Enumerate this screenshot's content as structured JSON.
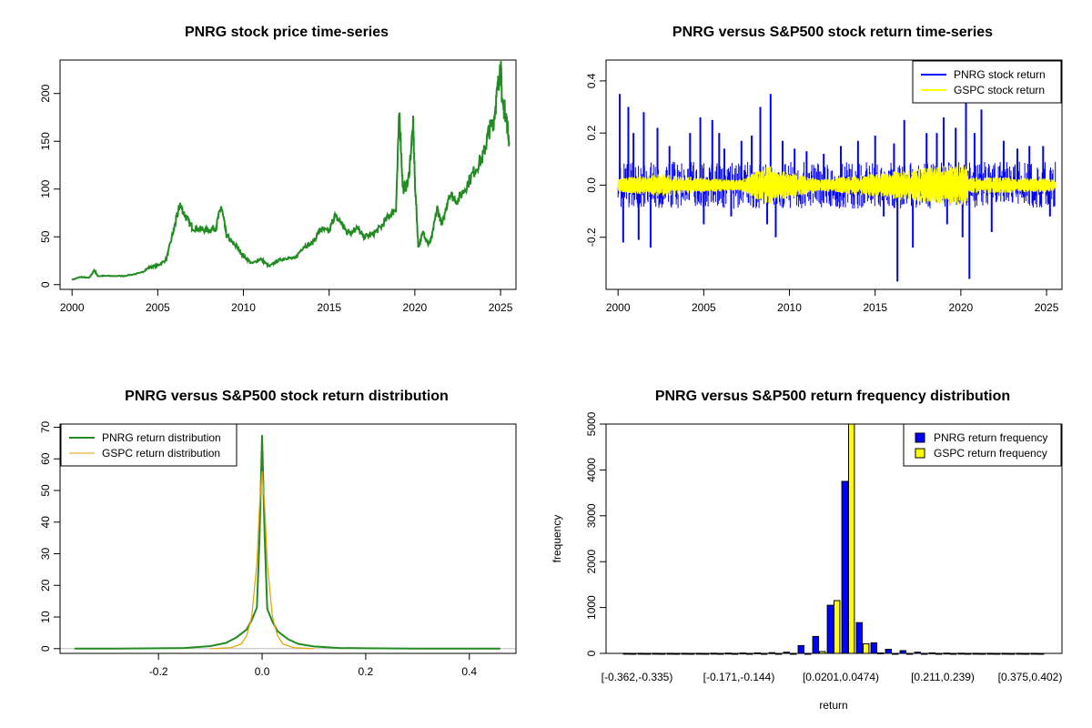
{
  "colors": {
    "price": "#228b22",
    "pnrg_return": "#0000ff",
    "gspc_return": "#ffff00",
    "pnrg_density": "#228b22",
    "gspc_density": "#e69f00",
    "axis": "#000000",
    "zero_line": "#bebebe"
  },
  "chart_data": [
    {
      "id": "price",
      "type": "line",
      "title": "PNRG stock price time-series",
      "xlabel": "",
      "ylabel": "",
      "xlim": [
        1999.3,
        2025.9
      ],
      "ylim": [
        -5,
        235
      ],
      "x_ticks": [
        2000,
        2005,
        2010,
        2015,
        2020,
        2025
      ],
      "y_ticks": [
        0,
        50,
        100,
        150,
        200
      ],
      "series": [
        {
          "color_key": "price",
          "x": [
            2000.0,
            2000.5,
            2001.0,
            2001.3,
            2001.5,
            2002.0,
            2003.0,
            2004.0,
            2004.5,
            2005.0,
            2005.5,
            2005.9,
            2006.1,
            2006.3,
            2006.6,
            2007.0,
            2007.5,
            2008.0,
            2008.4,
            2008.7,
            2009.0,
            2009.3,
            2009.6,
            2010.0,
            2010.5,
            2011.0,
            2011.5,
            2012.0,
            2012.5,
            2013.0,
            2013.5,
            2014.0,
            2014.5,
            2015.0,
            2015.3,
            2015.7,
            2016.0,
            2016.3,
            2016.6,
            2017.0,
            2017.5,
            2018.0,
            2018.5,
            2018.9,
            2019.1,
            2019.3,
            2019.6,
            2019.9,
            2020.0,
            2020.2,
            2020.5,
            2020.8,
            2021.0,
            2021.3,
            2021.6,
            2022.0,
            2022.5,
            2023.0,
            2023.5,
            2024.0,
            2024.3,
            2024.6,
            2024.8,
            2025.0,
            2025.1,
            2025.3,
            2025.5
          ],
          "y": [
            5,
            8,
            7,
            15,
            9,
            9,
            9,
            12,
            18,
            20,
            26,
            55,
            70,
            84,
            72,
            60,
            58,
            57,
            60,
            82,
            52,
            45,
            40,
            30,
            22,
            27,
            19,
            25,
            28,
            27,
            40,
            43,
            58,
            55,
            72,
            65,
            56,
            55,
            60,
            50,
            52,
            60,
            72,
            80,
            182,
            100,
            105,
            168,
            110,
            40,
            55,
            42,
            50,
            80,
            62,
            95,
            88,
            103,
            120,
            135,
            160,
            172,
            200,
            230,
            190,
            180,
            150
          ]
        }
      ]
    },
    {
      "id": "returns",
      "type": "line",
      "title": "PNRG versus S&P500 stock return time-series",
      "xlabel": "",
      "ylabel": "",
      "xlim": [
        1999.3,
        2025.9
      ],
      "ylim": [
        -0.4,
        0.48
      ],
      "x_ticks": [
        2000,
        2005,
        2010,
        2015,
        2020,
        2025
      ],
      "y_ticks": [
        -0.2,
        0.0,
        0.2,
        0.4
      ],
      "y_tick_labels": [
        "-0.2",
        "0.0",
        "0.2",
        "0.4"
      ],
      "legend": {
        "position": "top-right",
        "entries": [
          "PNRG stock return",
          "GSPC stock return"
        ]
      },
      "series": [
        {
          "name": "PNRG stock return",
          "color_key": "pnrg_return",
          "x": [
            2000.1,
            2000.3,
            2000.6,
            2000.9,
            2001.2,
            2001.5,
            2001.9,
            2002.3,
            2003.0,
            2004.2,
            2004.8,
            2005.0,
            2005.5,
            2005.9,
            2006.2,
            2006.6,
            2007.2,
            2007.8,
            2008.3,
            2008.7,
            2008.9,
            2009.2,
            2009.6,
            2010.3,
            2011.0,
            2012.0,
            2013.0,
            2014.0,
            2015.0,
            2015.5,
            2016.1,
            2016.3,
            2016.7,
            2017.2,
            2018.0,
            2018.6,
            2019.0,
            2019.2,
            2019.7,
            2020.1,
            2020.3,
            2020.5,
            2020.8,
            2021.2,
            2021.8,
            2022.5,
            2023.3,
            2024.0,
            2024.8,
            2025.2
          ],
          "y": [
            0.35,
            -0.22,
            0.3,
            0.2,
            -0.21,
            0.28,
            -0.24,
            0.22,
            0.15,
            0.2,
            0.26,
            -0.15,
            0.25,
            0.2,
            0.14,
            -0.12,
            0.17,
            0.19,
            0.3,
            -0.15,
            0.35,
            -0.2,
            0.17,
            0.14,
            0.13,
            0.12,
            0.15,
            0.17,
            0.19,
            -0.12,
            0.16,
            -0.37,
            0.25,
            -0.24,
            0.2,
            0.2,
            0.26,
            -0.15,
            0.22,
            -0.2,
            0.32,
            -0.36,
            0.2,
            0.29,
            -0.18,
            0.17,
            0.14,
            0.15,
            0.15,
            -0.12
          ],
          "band": 0.06
        },
        {
          "name": "GSPC stock return",
          "color_key": "gspc_return",
          "x": [
            2000.0,
            2002.5,
            2003.0,
            2007.0,
            2008.8,
            2009.3,
            2012.0,
            2020.2,
            2020.5,
            2025.5
          ],
          "y_abs": [
            0.02,
            0.035,
            0.03,
            0.015,
            0.06,
            0.045,
            0.018,
            0.065,
            0.025,
            0.02
          ]
        }
      ]
    },
    {
      "id": "density",
      "type": "line",
      "title": "PNRG versus S&P500 stock return distribution",
      "xlabel": "",
      "ylabel": "",
      "xlim": [
        -0.39,
        0.49
      ],
      "ylim": [
        -1.5,
        71
      ],
      "x_ticks": [
        -0.2,
        0.0,
        0.2,
        0.4
      ],
      "x_tick_labels": [
        "-0.2",
        "0.0",
        "0.2",
        "0.4"
      ],
      "y_ticks": [
        0,
        10,
        20,
        30,
        40,
        50,
        60,
        70
      ],
      "legend": {
        "position": "top-left",
        "entries": [
          "PNRG return distribution",
          "GSPC return distribution"
        ]
      },
      "series": [
        {
          "name": "PNRG return distribution",
          "color_key": "pnrg_density",
          "x": [
            -0.362,
            -0.3,
            -0.2,
            -0.15,
            -0.1,
            -0.07,
            -0.05,
            -0.03,
            -0.02,
            -0.01,
            -0.005,
            0.0,
            0.005,
            0.01,
            0.02,
            0.03,
            0.05,
            0.07,
            0.1,
            0.15,
            0.2,
            0.3,
            0.46
          ],
          "y": [
            0,
            0,
            0.1,
            0.2,
            0.8,
            1.8,
            3.5,
            6.0,
            9.0,
            13.0,
            35.0,
            67.5,
            35.0,
            12.5,
            8.5,
            5.5,
            3.0,
            1.5,
            0.7,
            0.2,
            0.1,
            0.0,
            0.0
          ]
        },
        {
          "name": "GSPC return distribution",
          "color_key": "gspc_density",
          "x": [
            -0.1,
            -0.06,
            -0.04,
            -0.03,
            -0.02,
            -0.01,
            -0.005,
            0.0,
            0.005,
            0.01,
            0.02,
            0.03,
            0.04,
            0.06,
            0.1
          ],
          "y": [
            0.0,
            0.3,
            1.5,
            4.0,
            10.0,
            27.0,
            45.0,
            56.0,
            45.0,
            27.0,
            10.0,
            4.0,
            1.5,
            0.3,
            0.0
          ]
        }
      ]
    },
    {
      "id": "frequency",
      "type": "bar",
      "title": "PNRG versus S&P500 return frequency distribution",
      "xlabel": "return",
      "ylabel": "frequency",
      "ylim": [
        0,
        5000
      ],
      "y_ticks": [
        0,
        1000,
        2000,
        3000,
        4000,
        5000
      ],
      "legend": {
        "position": "top-right",
        "entries": [
          "PNRG return frequency",
          "GSPC return frequency"
        ]
      },
      "x_tick_labels": [
        "[-0.362,-0.335)",
        "[-0.171,-0.144)",
        "[0.0201,0.0474)",
        "[0.211,0.239)",
        "[0.375,0.402)"
      ],
      "x_tick_bin_index": [
        0,
        7,
        14,
        21,
        27
      ],
      "bin_count": 29,
      "series": [
        {
          "name": "PNRG return frequency",
          "color_key": "pnrg_return",
          "values": [
            1,
            1,
            1,
            1,
            1,
            2,
            3,
            5,
            8,
            10,
            15,
            25,
            170,
            370,
            1050,
            3750,
            670,
            230,
            90,
            60,
            25,
            10,
            5,
            3,
            2,
            1,
            1,
            1,
            1
          ]
        },
        {
          "name": "GSPC return frequency",
          "color_key": "gspc_return",
          "values": [
            0,
            0,
            0,
            0,
            0,
            0,
            0,
            0,
            0,
            0,
            0,
            0,
            0,
            40,
            1150,
            5000,
            210,
            10,
            0,
            0,
            0,
            0,
            0,
            0,
            0,
            0,
            0,
            0,
            0
          ]
        }
      ]
    }
  ]
}
